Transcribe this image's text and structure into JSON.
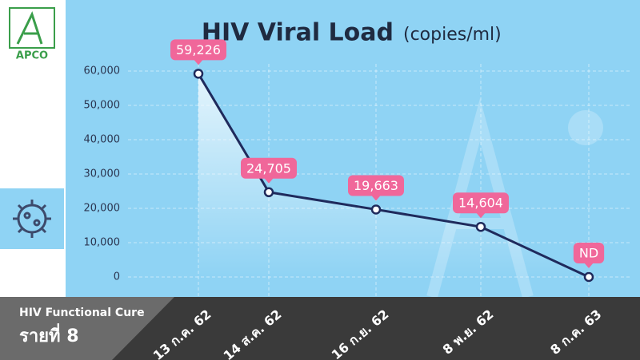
{
  "logo": "APCO",
  "case_label": "HIV Functional Cure",
  "case_number": "รายที่ 8",
  "chart_data": {
    "type": "line",
    "title": "HIV Viral Load",
    "subtitle": "(copies/ml)",
    "categories": [
      "13 ก.ค. 62",
      "14 ส.ค. 62",
      "16 ก.ย. 62",
      "8 พ.ย. 62",
      "8 ก.ค. 63"
    ],
    "series": [
      {
        "name": "HIV Viral Load",
        "color": "#1f2a5c",
        "values": [
          59226,
          24705,
          19663,
          14604,
          0
        ],
        "value_labels": [
          "59,226",
          "24,705",
          "19,663",
          "14,604",
          "ND"
        ]
      }
    ],
    "ylim": [
      0,
      60000
    ],
    "yticks": [
      0,
      {
        "value": 10000,
        "label": "10,000"
      },
      {
        "value": 20000,
        "label": "20,000"
      },
      {
        "value": 30000,
        "label": "30,000"
      },
      {
        "value": 40000,
        "label": "40,000"
      },
      {
        "value": 50000,
        "label": "50,000"
      },
      {
        "value": 60000,
        "label": "60,000"
      }
    ],
    "grid": true
  }
}
